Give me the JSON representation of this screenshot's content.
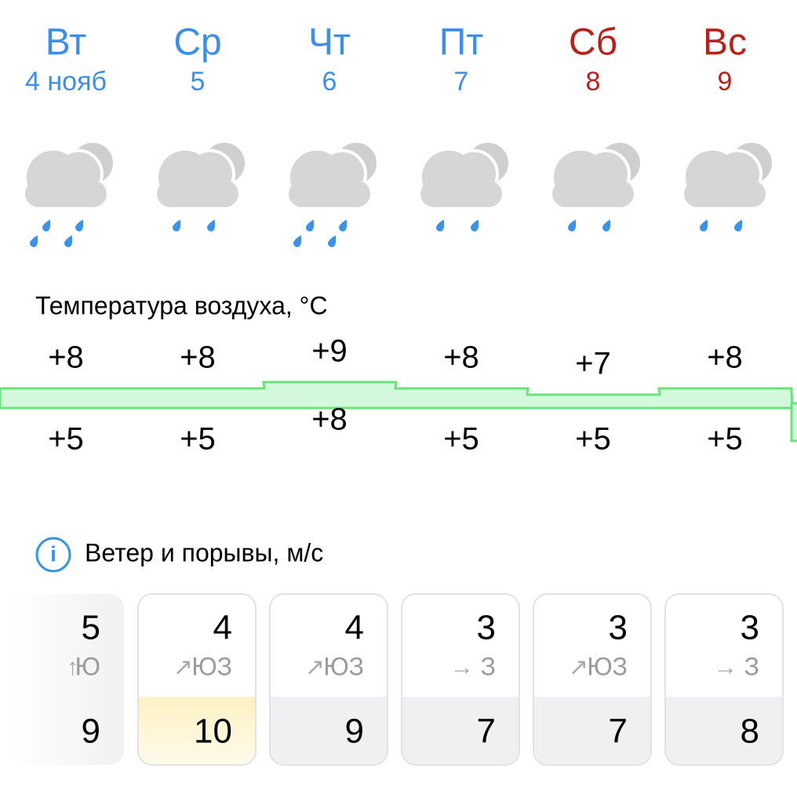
{
  "days": [
    {
      "weekday": "Вт",
      "date": "4 нояб",
      "weekend": false,
      "max": "+8",
      "min": "+5",
      "wind": "5",
      "arrow": "↑",
      "direction": "Ю",
      "gust": "9"
    },
    {
      "weekday": "Ср",
      "date": "5",
      "weekend": false,
      "max": "+8",
      "min": "+5",
      "wind": "4",
      "arrow": "↗",
      "direction": "ЮЗ",
      "gust": "10"
    },
    {
      "weekday": "Чт",
      "date": "6",
      "weekend": false,
      "max": "+9",
      "min": "+8",
      "wind": "4",
      "arrow": "↗",
      "direction": "ЮЗ",
      "gust": "9"
    },
    {
      "weekday": "Пт",
      "date": "7",
      "weekend": false,
      "max": "+8",
      "min": "+5",
      "wind": "3",
      "arrow": "→",
      "direction": "З",
      "gust": "7"
    },
    {
      "weekday": "Сб",
      "date": "8",
      "weekend": true,
      "max": "+7",
      "min": "+5",
      "wind": "3",
      "arrow": "↗",
      "direction": "ЮЗ",
      "gust": "7"
    },
    {
      "weekday": "Вс",
      "date": "9",
      "weekend": true,
      "max": "+8",
      "min": "+5",
      "wind": "3",
      "arrow": "→",
      "direction": "З",
      "gust": "8"
    }
  ],
  "temperature_title": "Температура воздуха, °С",
  "wind_title": "Ветер и порывы, м/с",
  "info_icon": "i"
}
